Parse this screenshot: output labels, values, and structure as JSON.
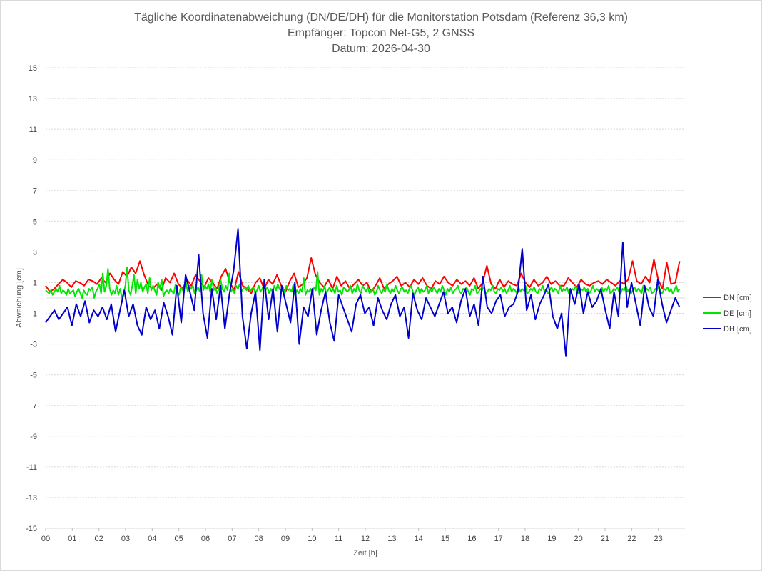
{
  "chart_data": {
    "type": "line",
    "title_lines": [
      "Tägliche Koordinatenabweichung (DN/DE/DH) für die Monitorstation Potsdam (Referenz 36,3 km)",
      "Empfänger: Topcon Net-G5, 2 GNSS",
      "Datum: 2026-04-30"
    ],
    "xlabel": "Zeit [h]",
    "ylabel": "Abweichung [cm]",
    "xlim": [
      0,
      24
    ],
    "ylim": [
      -15,
      15
    ],
    "x_ticks": [
      "00",
      "01",
      "02",
      "03",
      "04",
      "05",
      "06",
      "07",
      "08",
      "09",
      "10",
      "11",
      "12",
      "13",
      "14",
      "15",
      "16",
      "17",
      "18",
      "19",
      "20",
      "21",
      "22",
      "23"
    ],
    "y_ticks": [
      15,
      13,
      11,
      9,
      7,
      5,
      3,
      1,
      -1,
      -3,
      -5,
      -7,
      -9,
      -11,
      -13,
      -15
    ],
    "grid": true,
    "legend_position": "right",
    "sample_interval_h": 0.25,
    "series": [
      {
        "name": "DN [cm]",
        "color": "#ff0000",
        "values": [
          0.8,
          0.4,
          0.6,
          0.9,
          1.2,
          1.0,
          0.7,
          1.1,
          1.0,
          0.8,
          1.2,
          1.1,
          0.9,
          1.3,
          1.0,
          1.6,
          1.2,
          0.9,
          1.7,
          1.4,
          2.0,
          1.6,
          2.4,
          1.5,
          0.8,
          0.6,
          0.9,
          0.5,
          1.3,
          1.0,
          1.6,
          0.9,
          0.6,
          1.2,
          0.8,
          1.5,
          1.1,
          0.7,
          1.3,
          1.0,
          0.6,
          1.4,
          1.9,
          1.0,
          0.5,
          1.7,
          0.8,
          0.6,
          0.3,
          1.0,
          1.3,
          0.6,
          1.2,
          0.9,
          1.5,
          0.8,
          0.4,
          1.1,
          1.6,
          0.7,
          0.9,
          1.3,
          2.6,
          1.5,
          1.0,
          0.7,
          1.2,
          0.6,
          1.4,
          0.8,
          1.1,
          0.6,
          0.9,
          1.2,
          0.8,
          1.0,
          0.4,
          0.8,
          1.3,
          0.6,
          0.9,
          1.1,
          1.4,
          0.8,
          1.0,
          0.7,
          1.2,
          0.9,
          1.3,
          0.8,
          0.6,
          1.1,
          0.9,
          1.4,
          1.0,
          0.8,
          1.2,
          0.9,
          1.1,
          0.8,
          1.3,
          0.6,
          1.0,
          2.1,
          0.9,
          0.6,
          1.2,
          0.7,
          1.1,
          0.9,
          0.8,
          1.6,
          1.0,
          0.7,
          1.2,
          0.8,
          1.0,
          1.4,
          0.9,
          1.1,
          0.8,
          0.8,
          1.3,
          1.0,
          0.7,
          1.2,
          0.9,
          0.8,
          1.0,
          1.1,
          0.9,
          1.2,
          1.0,
          0.8,
          1.1,
          0.9,
          1.2,
          2.4,
          1.1,
          0.9,
          1.4,
          1.0,
          2.5,
          1.2,
          0.6,
          2.3,
          0.9,
          1.0,
          2.4
        ]
      },
      {
        "name": "DE [cm]",
        "color": "#00e600",
        "values": [
          0.5,
          0.4,
          0.3,
          0.5,
          0.2,
          0.4,
          0.6,
          0.4,
          0.8,
          0.3,
          0.5,
          0.4,
          0.2,
          0.6,
          0.3,
          0.4,
          0.5,
          0.1,
          0.4,
          0.6,
          0.3,
          0.0,
          0.5,
          0.3,
          0.2,
          0.6,
          0.5,
          0.7,
          0.0,
          0.4,
          0.6,
          0.9,
          0.3,
          1.6,
          0.4,
          0.8,
          1.9,
          0.6,
          0.2,
          0.5,
          0.3,
          0.8,
          0.2,
          0.6,
          0.0,
          0.3,
          0.8,
          2.0,
          0.5,
          0.2,
          0.8,
          1.5,
          0.3,
          1.2,
          0.6,
          1.0,
          0.4,
          0.7,
          0.9,
          0.3,
          1.3,
          0.5,
          0.8,
          0.5,
          0.2,
          1.0,
          0.6,
          1.2,
          0.1,
          0.4,
          0.5,
          0.3,
          0.6,
          0.4,
          0.3,
          0.9,
          0.4,
          0.2,
          0.7,
          0.5,
          0.6,
          1.0,
          0.4,
          0.8,
          0.6,
          0.8,
          0.3,
          0.5,
          0.7,
          0.4,
          1.5,
          0.5,
          0.8,
          0.6,
          0.9,
          0.4,
          1.2,
          0.5,
          0.7,
          0.3,
          0.6,
          1.2,
          0.6,
          0.4,
          0.8,
          0.5,
          1.6,
          0.4,
          0.6,
          0.3,
          0.8,
          0.6,
          0.9,
          0.4,
          0.6,
          0.7,
          0.5,
          0.8,
          0.4,
          0.6,
          0.7,
          0.3,
          0.5,
          0.8,
          0.4,
          0.6,
          0.9,
          0.5,
          0.7,
          0.3,
          0.6,
          0.4,
          0.8,
          0.5,
          0.9,
          0.6,
          0.4,
          0.7,
          0.3,
          0.8,
          0.5,
          0.6,
          0.4,
          0.9,
          0.2,
          0.5,
          0.3,
          0.6,
          0.4,
          1.3,
          0.2,
          0.5,
          0.4,
          0.6,
          0.3,
          0.7,
          0.5,
          1.7,
          0.2,
          0.6,
          0.4,
          0.8,
          0.3,
          0.5,
          0.7,
          0.4,
          0.6,
          0.3,
          0.8,
          0.4,
          0.5,
          0.2,
          0.7,
          0.6,
          0.4,
          0.5,
          0.8,
          0.3,
          0.6,
          0.4,
          0.9,
          0.5,
          0.3,
          0.8,
          0.6,
          0.4,
          0.7,
          0.3,
          0.5,
          0.6,
          0.2,
          0.4,
          0.8,
          0.5,
          0.3,
          0.6,
          0.4,
          0.9,
          0.5,
          0.3,
          0.6,
          0.4,
          0.8,
          0.5,
          0.3,
          0.6,
          0.7,
          0.4,
          0.5,
          0.3,
          0.6,
          0.8,
          0.4,
          0.2,
          0.5,
          0.7,
          0.3,
          0.6,
          0.4,
          0.5,
          0.8,
          0.3,
          0.6,
          0.4,
          0.7,
          0.5,
          0.3,
          0.6,
          0.4,
          0.8,
          0.5,
          0.2,
          0.6,
          0.4,
          0.7,
          0.3,
          0.5,
          0.6,
          0.8,
          0.4,
          0.3,
          0.6,
          0.5,
          0.7,
          0.4,
          0.2,
          0.6,
          0.5,
          0.8,
          0.3,
          0.4,
          0.6,
          0.5,
          0.7,
          0.3,
          0.4,
          0.6,
          0.5,
          0.8,
          0.4,
          0.3,
          0.6,
          0.5,
          0.7,
          0.4,
          0.6,
          0.3,
          0.5,
          0.8,
          0.4,
          0.6,
          0.5,
          0.3,
          0.7,
          0.4,
          0.6,
          0.5,
          0.8,
          0.3,
          0.4,
          0.6,
          0.5,
          0.7,
          0.4,
          0.3,
          0.6,
          0.5,
          0.8,
          0.4,
          0.6,
          0.3,
          0.5,
          0.7,
          0.4,
          0.6,
          0.5,
          0.3,
          0.8,
          0.4,
          0.6,
          0.5,
          0.7,
          0.3,
          0.4,
          0.6,
          0.5,
          0.8,
          0.4,
          0.3,
          0.6,
          0.5,
          0.7,
          0.4,
          0.6,
          0.3,
          0.5,
          0.8,
          0.4,
          0.6,
          0.5,
          0.3,
          0.7,
          0.4,
          0.6,
          0.5,
          0.8,
          0.3,
          0.4,
          0.6,
          0.5,
          0.7,
          0.4,
          0.3,
          0.6,
          0.5,
          0.8,
          0.4,
          0.6,
          0.3,
          0.5,
          0.7,
          0.4,
          0.6,
          0.5,
          0.3,
          0.8,
          0.4,
          0.6,
          0.5,
          0.7,
          0.3,
          0.4,
          0.6,
          0.5,
          0.8,
          0.4,
          0.3,
          0.6,
          0.5,
          0.7,
          0.4,
          0.6,
          0.3,
          0.5,
          0.8,
          0.4,
          0.6
        ]
      },
      {
        "name": "DH [cm]",
        "color": "#0000cc",
        "values": [
          -1.6,
          -1.2,
          -0.8,
          -1.4,
          -1.0,
          -0.6,
          -1.8,
          -0.4,
          -1.2,
          -0.2,
          -1.6,
          -0.8,
          -1.2,
          -0.6,
          -1.4,
          -0.4,
          -2.2,
          -0.8,
          0.5,
          -1.2,
          -0.4,
          -1.8,
          -2.4,
          -0.6,
          -1.4,
          -0.8,
          -2.0,
          -0.3,
          -1.2,
          -2.4,
          0.8,
          -1.6,
          1.5,
          0.4,
          -0.8,
          2.8,
          -1.0,
          -2.6,
          0.6,
          -1.4,
          0.8,
          -2.0,
          0.2,
          1.8,
          4.5,
          -1.2,
          -3.3,
          -1.0,
          0.4,
          -3.4,
          1.2,
          -1.4,
          0.6,
          -2.2,
          0.8,
          -0.4,
          -1.6,
          1.0,
          -3.0,
          -0.6,
          -1.2,
          0.6,
          -2.4,
          -0.8,
          0.4,
          -1.6,
          -2.8,
          0.2,
          -0.6,
          -1.4,
          -2.2,
          -0.4,
          0.2,
          -1.0,
          -0.6,
          -1.8,
          0.0,
          -0.8,
          -1.4,
          -0.4,
          0.2,
          -1.2,
          -0.6,
          -2.6,
          0.3,
          -0.8,
          -1.4,
          0.0,
          -0.6,
          -1.2,
          -0.4,
          0.4,
          -1.0,
          -0.6,
          -1.6,
          -0.2,
          0.6,
          -1.2,
          -0.4,
          -1.8,
          1.4,
          -0.6,
          -1.0,
          -0.2,
          0.2,
          -1.2,
          -0.6,
          -0.4,
          0.4,
          3.2,
          -0.8,
          0.2,
          -1.4,
          -0.4,
          0.2,
          0.9,
          -1.2,
          -2.0,
          -1.0,
          -3.8,
          0.6,
          -0.4,
          0.9,
          -1.0,
          0.4,
          -0.6,
          -0.2,
          0.6,
          -0.8,
          -2.0,
          0.4,
          -1.2,
          3.6,
          -0.6,
          1.0,
          -0.4,
          -1.8,
          0.8,
          -0.6,
          -1.2,
          1.2,
          -0.4,
          -1.6,
          -0.8,
          0.0,
          -0.6
        ]
      }
    ]
  }
}
